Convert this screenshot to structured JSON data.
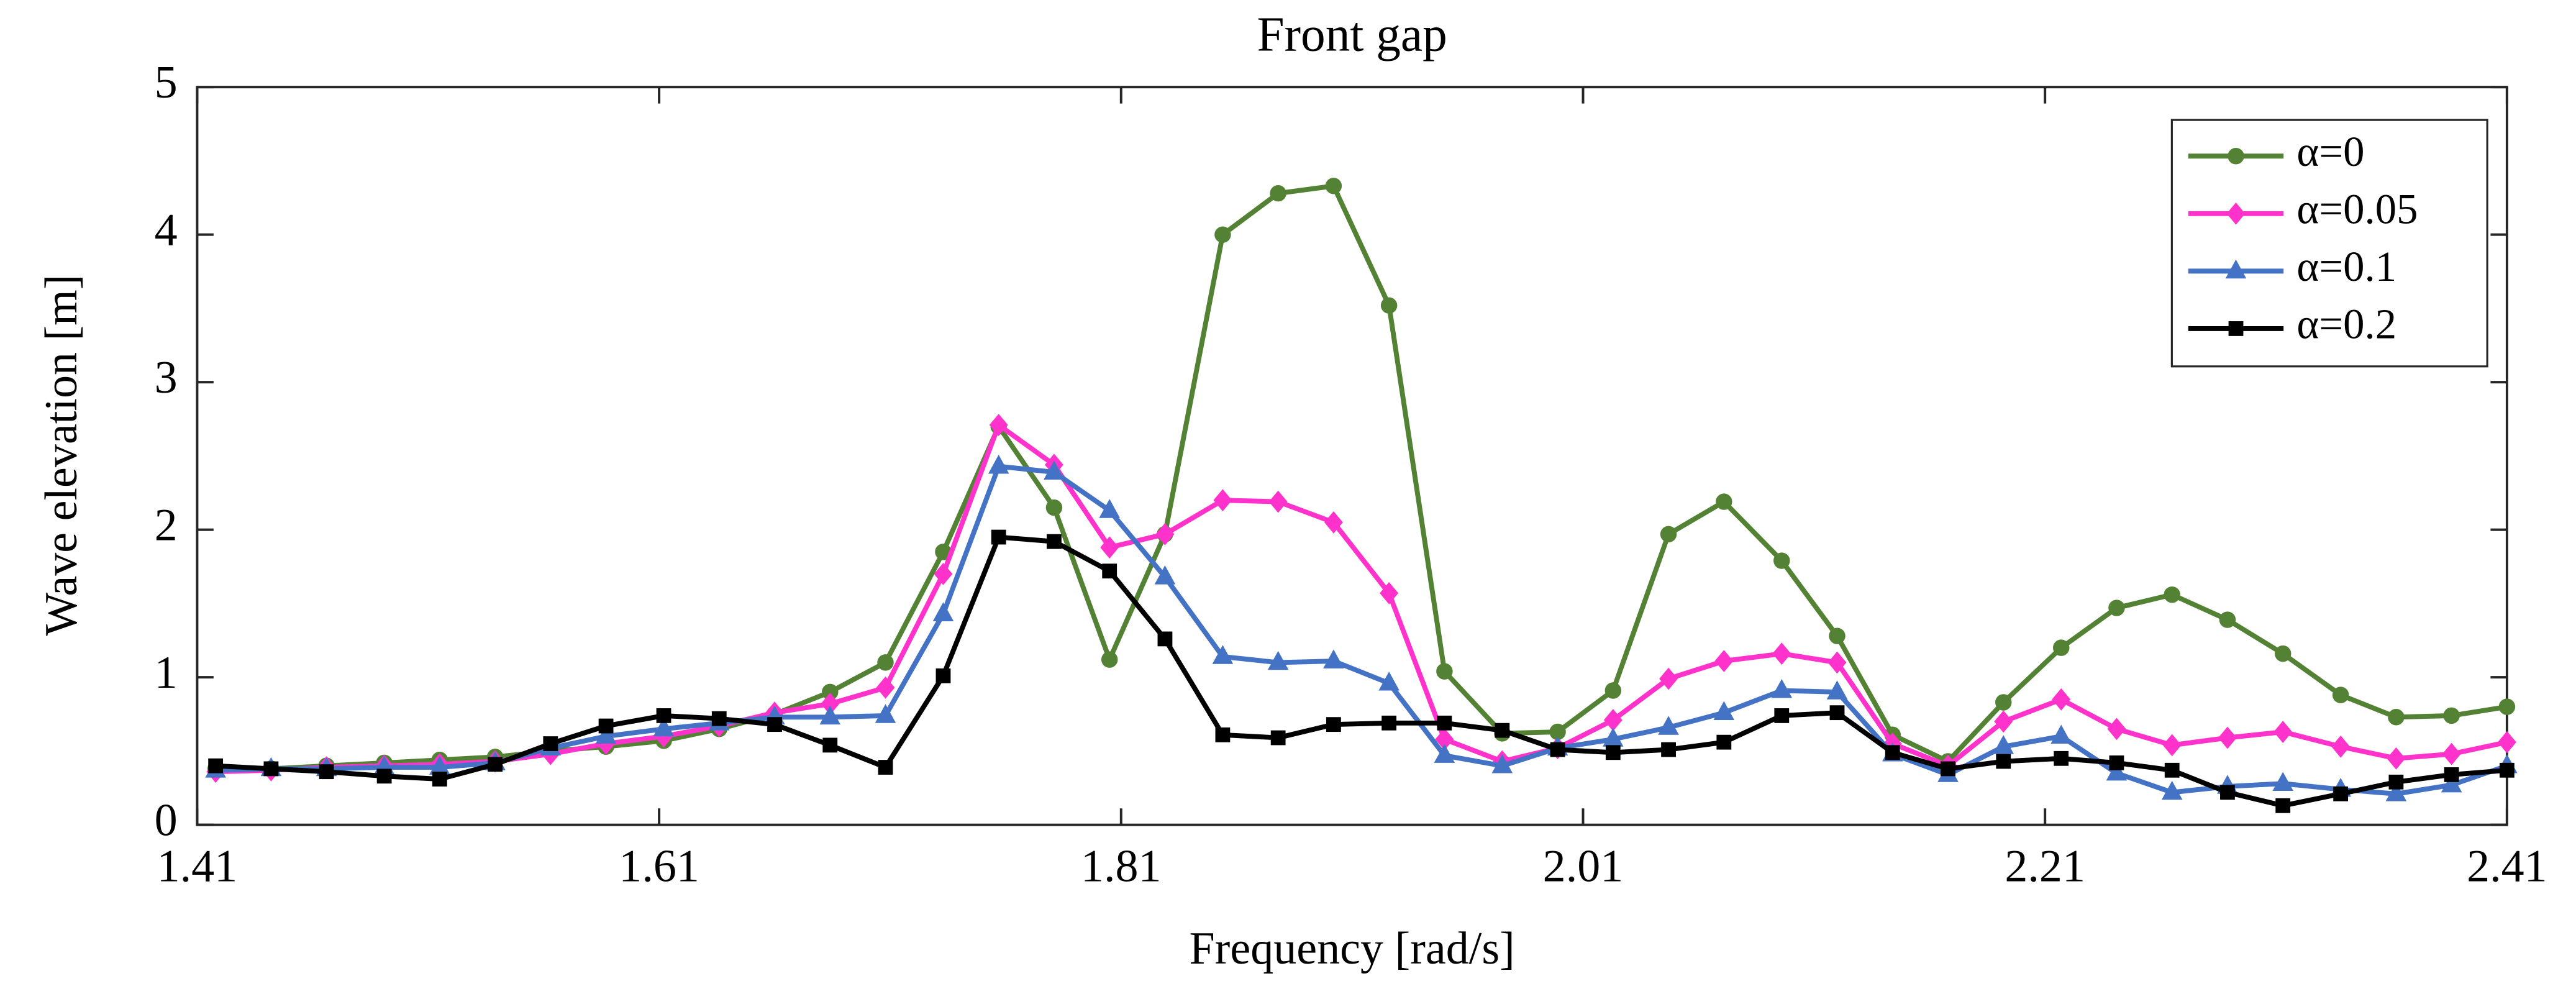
{
  "chart_data": {
    "type": "line",
    "title": "Front gap",
    "xlabel": "Frequency [rad/s]",
    "ylabel": "Wave elevation [m]",
    "x": [
      1.418,
      1.442,
      1.466,
      1.491,
      1.515,
      1.539,
      1.563,
      1.587,
      1.612,
      1.636,
      1.66,
      1.684,
      1.708,
      1.733,
      1.757,
      1.781,
      1.805,
      1.829,
      1.854,
      1.878,
      1.902,
      1.926,
      1.95,
      1.975,
      1.999,
      2.023,
      2.047,
      2.071,
      2.096,
      2.12,
      2.144,
      2.168,
      2.192,
      2.217,
      2.241,
      2.265,
      2.289,
      2.313,
      2.338,
      2.362,
      2.386,
      2.41
    ],
    "series": [
      {
        "name": "α=0",
        "color": "#548235",
        "marker": "circle",
        "values": [
          0.38,
          0.38,
          0.4,
          0.42,
          0.44,
          0.46,
          0.5,
          0.53,
          0.57,
          0.65,
          0.75,
          0.9,
          1.1,
          1.85,
          2.7,
          2.15,
          1.12,
          1.97,
          4.0,
          4.28,
          4.33,
          3.52,
          1.04,
          0.62,
          0.63,
          0.91,
          1.97,
          2.19,
          1.79,
          1.28,
          0.61,
          0.43,
          0.83,
          1.2,
          1.47,
          1.56,
          1.39,
          1.16,
          0.88,
          0.73,
          0.74,
          0.8
        ]
      },
      {
        "name": "α=0.05",
        "color": "#ff33cc",
        "marker": "diamond",
        "values": [
          0.36,
          0.37,
          0.39,
          0.4,
          0.41,
          0.43,
          0.48,
          0.55,
          0.6,
          0.67,
          0.76,
          0.82,
          0.93,
          1.7,
          2.71,
          2.44,
          1.88,
          1.97,
          2.2,
          2.19,
          2.05,
          1.57,
          0.58,
          0.43,
          0.52,
          0.71,
          0.99,
          1.11,
          1.16,
          1.1,
          0.55,
          0.4,
          0.7,
          0.85,
          0.65,
          0.54,
          0.59,
          0.63,
          0.53,
          0.45,
          0.48,
          0.56
        ]
      },
      {
        "name": "α=0.1",
        "color": "#4472c4",
        "marker": "triangle",
        "values": [
          0.37,
          0.38,
          0.38,
          0.39,
          0.39,
          0.42,
          0.52,
          0.6,
          0.65,
          0.69,
          0.73,
          0.73,
          0.74,
          1.43,
          2.43,
          2.39,
          2.13,
          1.68,
          1.14,
          1.1,
          1.11,
          0.96,
          0.47,
          0.4,
          0.52,
          0.58,
          0.66,
          0.76,
          0.91,
          0.9,
          0.48,
          0.34,
          0.53,
          0.6,
          0.35,
          0.22,
          0.26,
          0.28,
          0.24,
          0.21,
          0.27,
          0.4
        ]
      },
      {
        "name": "α=0.2",
        "color": "#000000",
        "marker": "square",
        "values": [
          0.4,
          0.38,
          0.36,
          0.33,
          0.31,
          0.41,
          0.55,
          0.67,
          0.74,
          0.72,
          0.68,
          0.54,
          0.39,
          1.01,
          1.95,
          1.92,
          1.72,
          1.26,
          0.61,
          0.59,
          0.68,
          0.69,
          0.69,
          0.64,
          0.51,
          0.49,
          0.51,
          0.56,
          0.74,
          0.76,
          0.49,
          0.38,
          0.43,
          0.45,
          0.42,
          0.37,
          0.22,
          0.13,
          0.21,
          0.29,
          0.34,
          0.37
        ]
      }
    ],
    "xlim": [
      1.41,
      2.41
    ],
    "xticks": [
      1.41,
      1.61,
      1.81,
      2.01,
      2.21,
      2.41
    ],
    "ylim": [
      0,
      5
    ],
    "yticks": [
      0,
      1,
      2,
      3,
      4,
      5
    ],
    "legend": "upper right",
    "grid": false
  }
}
